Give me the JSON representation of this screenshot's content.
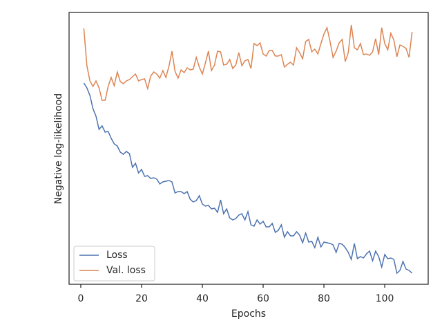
{
  "chart_data": {
    "type": "line",
    "x_label": "Epochs",
    "y_label": "Negative log-likelihood",
    "x": [
      1,
      2,
      3,
      4,
      5,
      6,
      7,
      8,
      9,
      10,
      11,
      12,
      13,
      14,
      15,
      16,
      17,
      18,
      19,
      20,
      21,
      22,
      23,
      24,
      25,
      26,
      27,
      28,
      29,
      30,
      31,
      32,
      33,
      34,
      35,
      36,
      37,
      38,
      39,
      40,
      41,
      42,
      43,
      44,
      45,
      46,
      47,
      48,
      49,
      50,
      51,
      52,
      53,
      54,
      55,
      56,
      57,
      58,
      59,
      60,
      61,
      62,
      63,
      64,
      65,
      66,
      67,
      68,
      69,
      70,
      71,
      72,
      73,
      74,
      75,
      76,
      77,
      78,
      79,
      80,
      81,
      82,
      83,
      84,
      85,
      86,
      87,
      88,
      89,
      90,
      91,
      92,
      93,
      94,
      95,
      96,
      97,
      98,
      99,
      100,
      101,
      102,
      103,
      104,
      105,
      106,
      107,
      108,
      109
    ],
    "series": [
      {
        "name": "Loss",
        "color": "#4c72b0",
        "values": [
          291,
          284,
          273,
          254,
          243,
          224,
          229,
          220,
          221,
          211,
          203,
          200,
          191,
          188,
          192,
          189,
          169,
          175,
          161,
          166,
          156,
          157,
          153,
          154,
          152,
          145,
          148,
          149,
          150,
          148,
          132,
          134,
          134,
          131,
          134,
          123,
          119,
          121,
          128,
          116,
          113,
          114,
          109,
          110,
          104,
          122,
          102,
          109,
          96,
          93,
          95,
          100,
          102,
          93,
          105,
          86,
          84,
          93,
          87,
          91,
          83,
          83,
          88,
          75,
          78,
          86,
          68,
          76,
          70,
          70,
          76,
          71,
          60,
          74,
          61,
          62,
          53,
          68,
          54,
          61,
          60,
          59,
          57,
          46,
          59,
          58,
          53,
          46,
          36,
          59,
          37,
          40,
          38,
          44,
          48,
          34,
          48,
          40,
          25,
          43,
          37,
          38,
          36,
          16,
          20,
          33,
          22,
          20,
          16
        ]
      },
      {
        "name": "Val. loss",
        "color": "#dd8452",
        "values": [
          370,
          316,
          294,
          286,
          294,
          284,
          266,
          266,
          286,
          299,
          287,
          307,
          293,
          290,
          294,
          296,
          300,
          304,
          294,
          296,
          297,
          283,
          301,
          307,
          304,
          298,
          309,
          299,
          315,
          337,
          308,
          298,
          310,
          306,
          313,
          310,
          311,
          328,
          314,
          304,
          320,
          337,
          309,
          317,
          337,
          336,
          317,
          318,
          325,
          312,
          317,
          335,
          316,
          323,
          325,
          312,
          348,
          345,
          349,
          333,
          330,
          338,
          338,
          330,
          330,
          332,
          314,
          318,
          321,
          317,
          342,
          335,
          326,
          351,
          354,
          336,
          340,
          333,
          348,
          362,
          371,
          351,
          328,
          337,
          349,
          354,
          322,
          335,
          375,
          342,
          339,
          348,
          332,
          333,
          331,
          336,
          355,
          332,
          371,
          348,
          339,
          363,
          353,
          329,
          346,
          344,
          341,
          328,
          365
        ]
      }
    ],
    "xlim": [
      -3.86,
      114.3
    ],
    "xticks": [
      0,
      20,
      40,
      60,
      80,
      100
    ],
    "ylim": [
      0,
      393
    ],
    "legend": "lower left"
  }
}
